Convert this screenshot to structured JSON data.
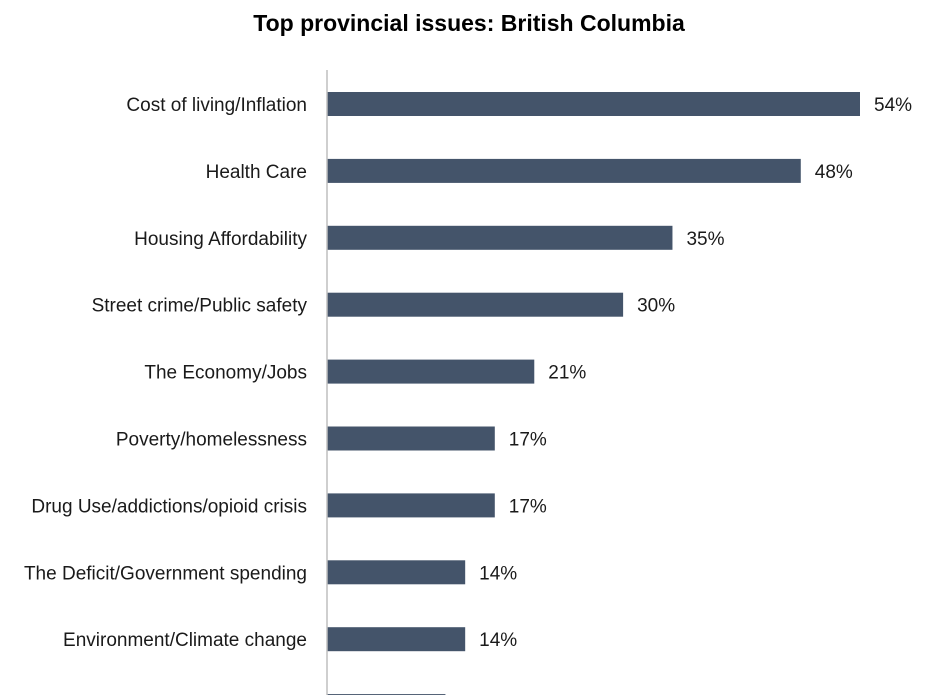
{
  "chart_data": {
    "type": "bar",
    "orientation": "horizontal",
    "title": "Top provincial issues: British Columbia",
    "categories": [
      "Cost of living/Inflation",
      "Health Care",
      "Housing Affordability",
      "Street crime/Public safety",
      "The Economy/Jobs",
      "Poverty/homelessness",
      "Drug Use/addictions/opioid crisis",
      "The Deficit/Government spending",
      "Environment/Climate change",
      ""
    ],
    "values": [
      54,
      48,
      35,
      30,
      21,
      17,
      17,
      14,
      14,
      12
    ],
    "value_labels": [
      "54%",
      "48%",
      "35%",
      "30%",
      "21%",
      "17%",
      "17%",
      "14%",
      "14%",
      ""
    ],
    "value_suffix": "%",
    "bar_color": "#44546a",
    "axis_color": "#bfbfbf",
    "xlim": [
      0,
      54
    ],
    "grid": false,
    "legend": "none"
  }
}
